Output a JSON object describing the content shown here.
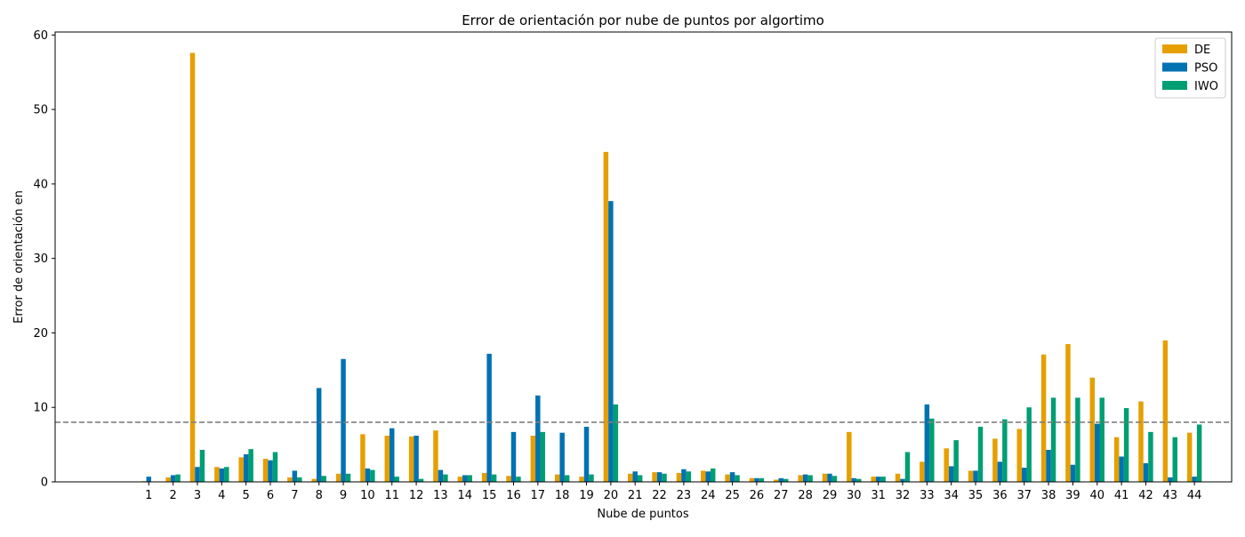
{
  "chart_data": {
    "type": "bar",
    "title": "Error de orientación por nube de puntos por algortimo",
    "xlabel": "Nube de puntos",
    "ylabel": "Error de orientación en",
    "categories": [
      "1",
      "2",
      "3",
      "4",
      "5",
      "6",
      "7",
      "8",
      "9",
      "10",
      "11",
      "12",
      "13",
      "14",
      "15",
      "16",
      "17",
      "18",
      "19",
      "20",
      "21",
      "22",
      "23",
      "24",
      "25",
      "26",
      "27",
      "28",
      "29",
      "30",
      "31",
      "32",
      "33",
      "34",
      "35",
      "36",
      "37",
      "38",
      "39",
      "40",
      "41",
      "42",
      "43",
      "44"
    ],
    "ylim": [
      0,
      60.4
    ],
    "yticks": [
      0,
      10,
      20,
      30,
      40,
      50,
      60
    ],
    "threshold": 8.0,
    "grid": false,
    "legend_position": "top-right",
    "series": [
      {
        "name": "DE",
        "color": "#E69F00",
        "values": [
          0.1,
          0.6,
          57.6,
          2.0,
          3.3,
          3.1,
          0.6,
          0.4,
          1.1,
          6.4,
          6.2,
          6.1,
          6.9,
          0.7,
          1.2,
          0.8,
          6.2,
          1.0,
          0.7,
          44.3,
          1.1,
          1.3,
          1.2,
          1.5,
          1.0,
          0.5,
          0.3,
          0.9,
          1.1,
          6.7,
          0.7,
          1.1,
          2.7,
          4.5,
          1.5,
          5.8,
          7.1,
          17.1,
          18.5,
          14.0,
          6.0,
          10.8,
          19.0,
          6.6
        ]
      },
      {
        "name": "PSO",
        "color": "#0072B2",
        "values": [
          0.7,
          0.9,
          2.0,
          1.8,
          3.7,
          2.9,
          1.5,
          12.6,
          16.5,
          1.8,
          7.2,
          6.2,
          1.6,
          0.9,
          17.2,
          6.7,
          11.6,
          6.6,
          7.4,
          37.7,
          1.4,
          1.3,
          1.7,
          1.4,
          1.3,
          0.5,
          0.5,
          1.0,
          1.1,
          0.5,
          0.7,
          0.4,
          10.4,
          2.1,
          1.5,
          2.7,
          1.9,
          4.3,
          2.3,
          7.8,
          3.4,
          2.5,
          0.6,
          0.7
        ]
      },
      {
        "name": "IWO",
        "color": "#009E73",
        "values": [
          0.0,
          1.0,
          4.3,
          2.0,
          4.4,
          4.0,
          0.6,
          0.8,
          1.1,
          1.6,
          0.7,
          0.4,
          1.0,
          0.9,
          1.0,
          0.7,
          6.7,
          0.9,
          1.0,
          10.4,
          0.9,
          1.1,
          1.4,
          1.8,
          0.9,
          0.5,
          0.4,
          0.9,
          0.8,
          0.4,
          0.7,
          4.0,
          8.5,
          5.6,
          7.4,
          8.4,
          10.0,
          11.3,
          11.3,
          11.3,
          9.9,
          6.7,
          6.0,
          7.7
        ]
      }
    ]
  }
}
